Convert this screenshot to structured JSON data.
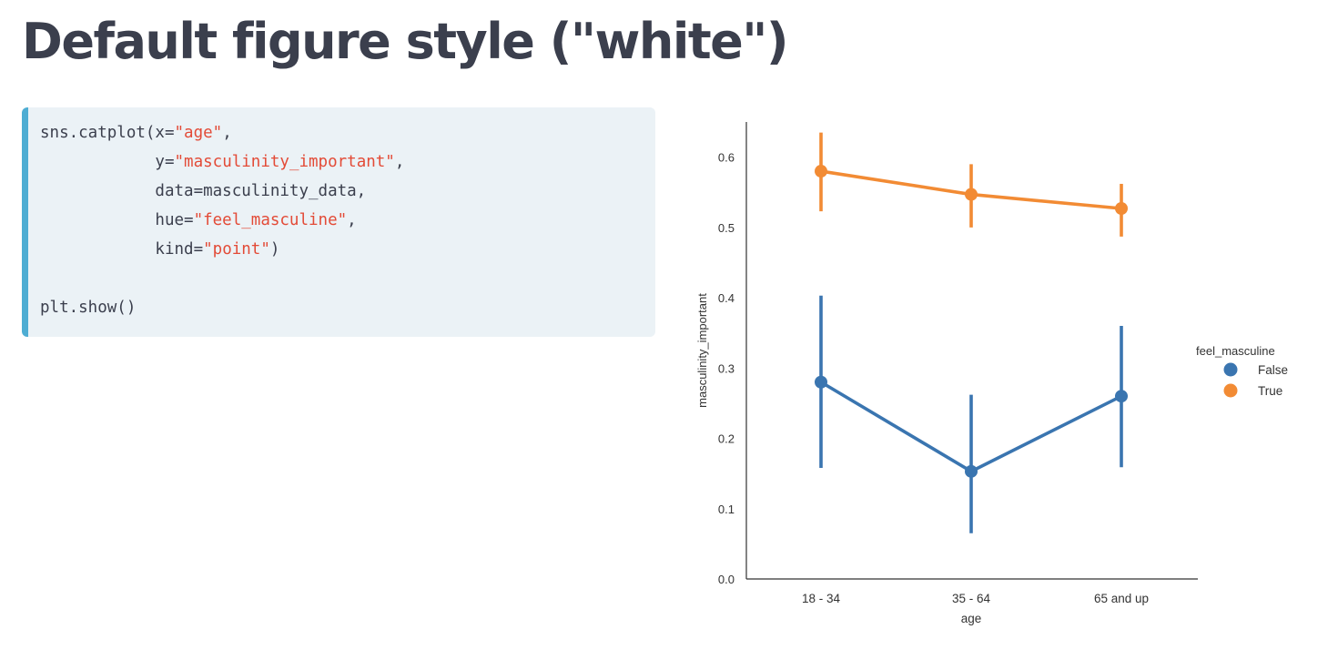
{
  "page": {
    "title": "Default figure style (\"white\")"
  },
  "code": {
    "lines": [
      [
        {
          "t": "sns.catplot(x="
        },
        {
          "t": "\"age\"",
          "s": 1
        },
        {
          "t": ","
        }
      ],
      [
        {
          "t": "            y="
        },
        {
          "t": "\"masculinity_important\"",
          "s": 1
        },
        {
          "t": ","
        }
      ],
      [
        {
          "t": "            data=masculinity_data,"
        }
      ],
      [
        {
          "t": "            hue="
        },
        {
          "t": "\"feel_masculine\"",
          "s": 1
        },
        {
          "t": ","
        }
      ],
      [
        {
          "t": "            kind="
        },
        {
          "t": "\"point\"",
          "s": 1
        },
        {
          "t": ")"
        }
      ],
      [],
      [
        {
          "t": "plt.show()"
        }
      ]
    ],
    "colors": {
      "accent": "#4eadd3",
      "background": "#ebf2f6",
      "string": "#e34b37",
      "text": "#3b3f4d"
    }
  },
  "chart_data": {
    "type": "line",
    "categories": [
      "18 - 34",
      "35 - 64",
      "65 and up"
    ],
    "xlabel": "age",
    "ylabel": "masculinity_important",
    "ylim": [
      0.0,
      0.65
    ],
    "yticks": [
      "0.0",
      "0.1",
      "0.2",
      "0.3",
      "0.4",
      "0.5",
      "0.6"
    ],
    "legend_title": "feel_masculine",
    "legend_position": "right",
    "grid": false,
    "series": [
      {
        "name": "False",
        "color": "#3a75b0",
        "values": [
          0.28,
          0.153,
          0.26
        ],
        "ci": [
          [
            0.158,
            0.403
          ],
          [
            0.065,
            0.262
          ],
          [
            0.159,
            0.36
          ]
        ]
      },
      {
        "name": "True",
        "color": "#f28b34",
        "values": [
          0.58,
          0.547,
          0.527
        ],
        "ci": [
          [
            0.523,
            0.635
          ],
          [
            0.5,
            0.59
          ],
          [
            0.487,
            0.562
          ]
        ]
      }
    ]
  }
}
